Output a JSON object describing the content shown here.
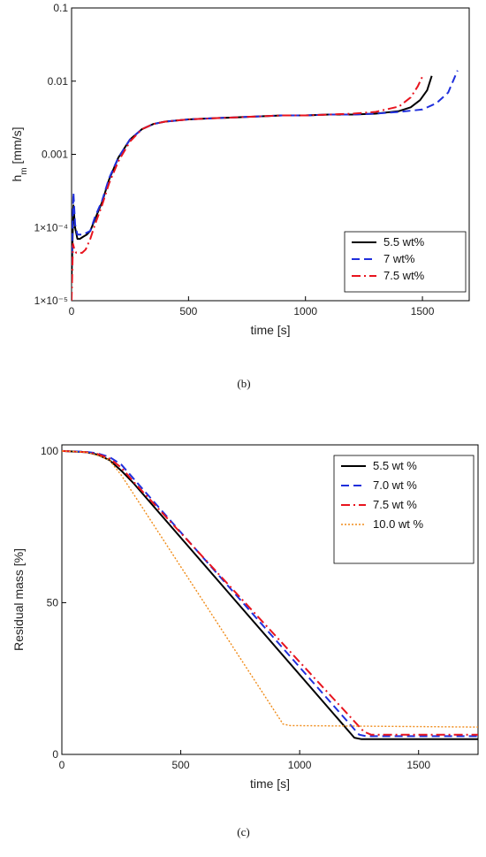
{
  "chart_data": [
    {
      "type": "line",
      "panel_caption": "(b)",
      "xlabel": "time [s]",
      "ylabel_main": "h",
      "ylabel_sub": "m",
      "ylabel_unit": " [mm/s]",
      "yscale": "log",
      "xlim": [
        0,
        1700
      ],
      "ylim": [
        1e-05,
        0.1
      ],
      "xticks": [
        0,
        500,
        1000,
        1500
      ],
      "xtick_labels": [
        "0",
        "500",
        "1000",
        "1500"
      ],
      "yticks": [
        1e-05,
        0.0001,
        0.001,
        0.01,
        0.1
      ],
      "ytick_labels": [
        "1×10⁻⁵",
        "1×10⁻⁴",
        "0.001",
        "0.01",
        "0.1"
      ],
      "legend_position": "bottom-right",
      "series": [
        {
          "name": "5.5 wt%",
          "color": "#000000",
          "dash": "solid",
          "x": [
            0,
            8,
            15,
            25,
            35,
            50,
            65,
            80,
            100,
            130,
            160,
            200,
            250,
            300,
            350,
            400,
            500,
            600,
            700,
            800,
            900,
            1000,
            1100,
            1200,
            1300,
            1400,
            1450,
            1490,
            1520,
            1540
          ],
          "y": [
            2e-05,
            0.0002,
            0.0001,
            7e-05,
            7e-05,
            7.5e-05,
            8e-05,
            9e-05,
            0.00013,
            0.00022,
            0.00045,
            0.0009,
            0.0016,
            0.0022,
            0.0026,
            0.0028,
            0.003,
            0.0031,
            0.0032,
            0.0033,
            0.0034,
            0.0034,
            0.0035,
            0.0035,
            0.0036,
            0.0039,
            0.0044,
            0.0055,
            0.0075,
            0.0118
          ]
        },
        {
          "name": "7 wt%",
          "color": "#1f2fdc",
          "dash": "long-dash",
          "x": [
            0,
            8,
            15,
            25,
            35,
            50,
            65,
            80,
            100,
            130,
            160,
            200,
            250,
            300,
            350,
            400,
            500,
            600,
            700,
            800,
            900,
            1000,
            1100,
            1200,
            1300,
            1400,
            1500,
            1560,
            1610,
            1650
          ],
          "y": [
            3e-05,
            0.0003,
            0.00011,
            8e-05,
            8e-05,
            8e-05,
            8.5e-05,
            9e-05,
            0.00014,
            0.00023,
            0.00047,
            0.0009,
            0.0016,
            0.0022,
            0.0026,
            0.0028,
            0.003,
            0.0031,
            0.0032,
            0.0033,
            0.0034,
            0.0034,
            0.0035,
            0.0035,
            0.0036,
            0.0038,
            0.0041,
            0.005,
            0.007,
            0.014
          ]
        },
        {
          "name": "7.5 wt%",
          "color": "#e8141e",
          "dash": "dash-dot",
          "x": [
            0,
            6,
            12,
            20,
            30,
            45,
            60,
            80,
            100,
            130,
            160,
            200,
            250,
            300,
            350,
            400,
            500,
            600,
            700,
            800,
            900,
            1000,
            1100,
            1200,
            1300,
            1400,
            1450,
            1480,
            1505
          ],
          "y": [
            1e-05,
            6e-05,
            5e-05,
            4.5e-05,
            4.5e-05,
            4.5e-05,
            5e-05,
            7e-05,
            0.00011,
            0.0002,
            0.0004,
            0.0008,
            0.0015,
            0.0022,
            0.0026,
            0.0028,
            0.003,
            0.0031,
            0.0032,
            0.0033,
            0.0034,
            0.0034,
            0.0035,
            0.0036,
            0.0038,
            0.0045,
            0.006,
            0.0085,
            0.0125
          ]
        }
      ]
    },
    {
      "type": "line",
      "panel_caption": "(c)",
      "xlabel": "time [s]",
      "ylabel": "Residual mass [%]",
      "xlim": [
        0,
        1750
      ],
      "ylim": [
        0,
        102
      ],
      "xticks": [
        0,
        500,
        1000,
        1500
      ],
      "xtick_labels": [
        "0",
        "500",
        "1000",
        "1500"
      ],
      "yticks": [
        0,
        50,
        100
      ],
      "ytick_labels": [
        "0",
        "50",
        "100"
      ],
      "legend_position": "top-right",
      "series": [
        {
          "name": "5.5 wt %",
          "color": "#000000",
          "dash": "solid",
          "x": [
            0,
            100,
            150,
            200,
            250,
            300,
            1230,
            1260,
            1750
          ],
          "y": [
            100,
            99.6,
            98.8,
            97,
            93.5,
            89.5,
            5.5,
            5,
            5
          ]
        },
        {
          "name": "7.0 wt %",
          "color": "#1f2fdc",
          "dash": "long-dash",
          "x": [
            0,
            100,
            150,
            200,
            250,
            300,
            1250,
            1280,
            1750
          ],
          "y": [
            100,
            99.7,
            99.2,
            98,
            95.5,
            91,
            6.5,
            6,
            6
          ]
        },
        {
          "name": "7.5 wt %",
          "color": "#e8141e",
          "dash": "dash-dot",
          "x": [
            0,
            100,
            150,
            200,
            250,
            300,
            1270,
            1300,
            1750
          ],
          "y": [
            100,
            99.6,
            99,
            97.5,
            94.5,
            90,
            7.5,
            6.5,
            6.5
          ]
        },
        {
          "name": "10.0 wt %",
          "color": "#f08c1a",
          "dash": "dotted",
          "x": [
            0,
            100,
            150,
            200,
            250,
            930,
            960,
            1750
          ],
          "y": [
            100,
            99.6,
            98.5,
            97,
            92,
            10,
            9.5,
            9
          ]
        }
      ]
    }
  ]
}
